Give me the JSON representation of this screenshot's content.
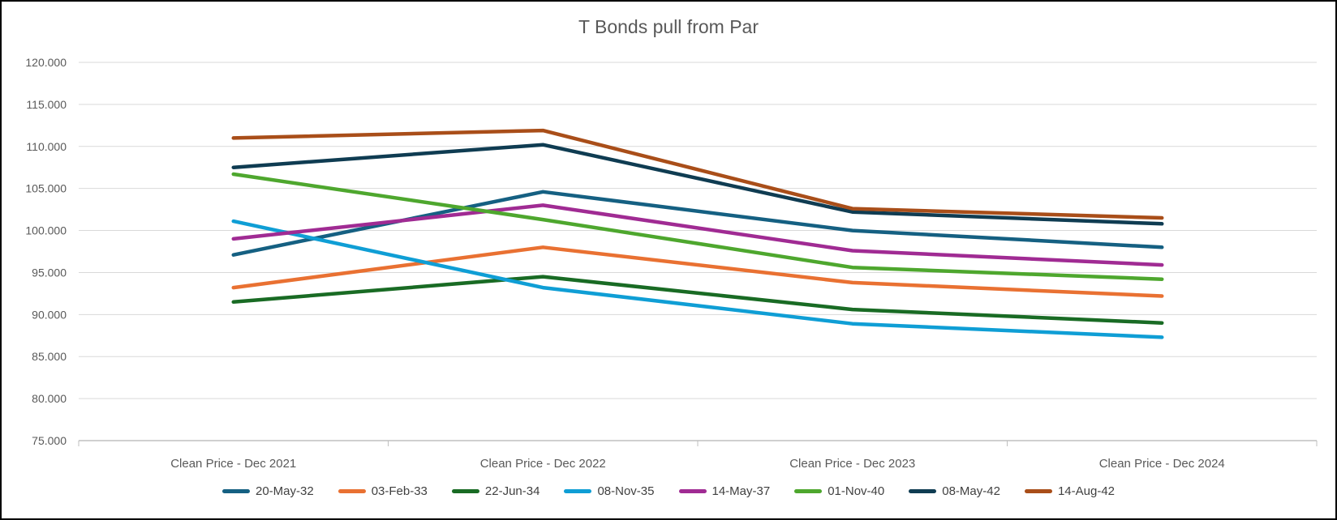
{
  "chart_data": {
    "type": "line",
    "title": "T Bonds pull from Par",
    "categories": [
      "Clean Price - Dec 2021",
      "Clean Price - Dec 2022",
      "Clean Price - Dec 2023",
      "Clean Price - Dec 2024"
    ],
    "series": [
      {
        "name": "20-May-32",
        "color": "#156082",
        "values": [
          97.1,
          104.6,
          100.0,
          98.0
        ]
      },
      {
        "name": "03-Feb-33",
        "color": "#E97132",
        "values": [
          93.2,
          98.0,
          93.8,
          92.2
        ]
      },
      {
        "name": "22-Jun-34",
        "color": "#196B24",
        "values": [
          91.5,
          94.5,
          90.6,
          89.0
        ]
      },
      {
        "name": "08-Nov-35",
        "color": "#0F9ED5",
        "values": [
          101.1,
          93.2,
          88.9,
          87.3
        ]
      },
      {
        "name": "14-May-37",
        "color": "#A02B93",
        "values": [
          99.0,
          103.0,
          97.6,
          95.9
        ]
      },
      {
        "name": "01-Nov-40",
        "color": "#4EA72E",
        "values": [
          106.7,
          101.3,
          95.6,
          94.2
        ]
      },
      {
        "name": "08-May-42",
        "color": "#0F3C52",
        "values": [
          107.5,
          110.2,
          102.2,
          100.8
        ]
      },
      {
        "name": "14-Aug-42",
        "color": "#A94E19",
        "values": [
          111.0,
          111.9,
          102.6,
          101.5
        ]
      }
    ],
    "ylim": [
      75,
      120
    ],
    "ytick_step": 5,
    "ytick_labels": [
      "120.000",
      "115.000",
      "110.000",
      "105.000",
      "100.000",
      "95.000",
      "90.000",
      "85.000",
      "80.000",
      "75.000"
    ],
    "grid": "horizontal",
    "legend_position": "bottom",
    "colors": {
      "title_text": "#595959",
      "axis_text": "#595959",
      "legend_text": "#404040",
      "gridline": "#D9D9D9",
      "axis_line": "#CFCFCF",
      "tick_mark": "#BFBFBF"
    }
  }
}
